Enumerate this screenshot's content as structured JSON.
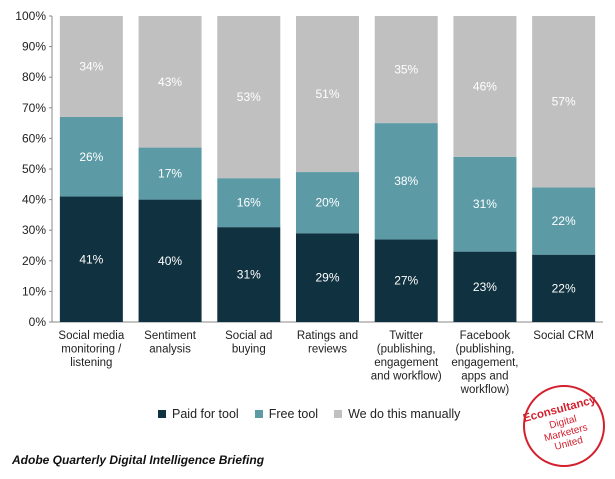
{
  "chart_data": {
    "type": "bar",
    "stacked": true,
    "categories": [
      [
        "Social media",
        "monitoring /",
        "listening"
      ],
      [
        "Sentiment",
        "analysis"
      ],
      [
        "Social ad",
        "buying"
      ],
      [
        "Ratings and",
        "reviews"
      ],
      [
        "Twitter",
        "(publishing,",
        "engagement",
        "and workflow)"
      ],
      [
        "Facebook",
        "(publishing,",
        "engagement,",
        "apps and",
        "workflow)"
      ],
      [
        "Social CRM"
      ]
    ],
    "series": [
      {
        "name": "Paid for tool",
        "color": "#10313f",
        "label_color": "#ffffff",
        "values": [
          41,
          40,
          31,
          29,
          27,
          23,
          22
        ]
      },
      {
        "name": "Free tool",
        "color": "#5c9ba6",
        "label_color": "#ffffff",
        "values": [
          26,
          17,
          16,
          20,
          38,
          31,
          22
        ]
      },
      {
        "name": "We do this manually",
        "color": "#c0c0c0",
        "label_color": "#ffffff",
        "values": [
          34,
          43,
          53,
          51,
          35,
          46,
          57
        ]
      }
    ],
    "value_suffix": "%",
    "ylim": [
      0,
      100
    ],
    "yticks": [
      "0%",
      "10%",
      "20%",
      "30%",
      "40%",
      "50%",
      "60%",
      "70%",
      "80%",
      "90%",
      "100%"
    ],
    "legend_position": "bottom"
  },
  "source": "Adobe Quarterly Digital Intelligence Briefing",
  "stamp": {
    "text_lines": [
      "Econsultancy",
      "Digital",
      "Marketers",
      "United"
    ],
    "color": "#d3202e"
  }
}
